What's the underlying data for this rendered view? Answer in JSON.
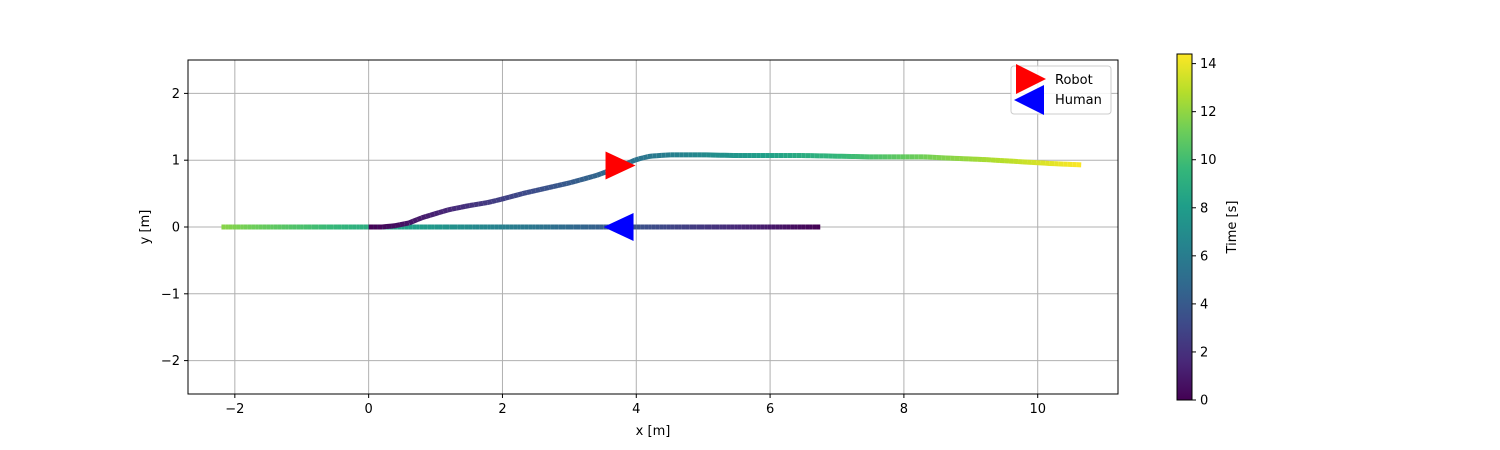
{
  "chart_data": {
    "type": "line",
    "xlabel": "x [m]",
    "ylabel": "y [m]",
    "xlim": [
      -2.7,
      11.2
    ],
    "ylim": [
      -2.5,
      2.5
    ],
    "xticks": [
      -2,
      0,
      2,
      4,
      6,
      8,
      10
    ],
    "yticks": [
      -2,
      -1,
      0,
      1,
      2
    ],
    "grid": true,
    "legend_position": "top-right",
    "colormap": "viridis",
    "colorbar": {
      "label": "Time [s]",
      "range": [
        0,
        14.4
      ],
      "ticks": [
        0,
        2,
        4,
        6,
        8,
        10,
        12,
        14
      ]
    },
    "series": [
      {
        "name": "Robot",
        "marker": "right-triangle",
        "marker_color": "#ff0000",
        "marker_position": {
          "x": 3.75,
          "y": 0.92
        },
        "t_range": [
          0,
          14.4
        ],
        "points": [
          {
            "x": 0.0,
            "y": 0.0
          },
          {
            "x": 0.2,
            "y": 0.0
          },
          {
            "x": 0.4,
            "y": 0.02
          },
          {
            "x": 0.6,
            "y": 0.06
          },
          {
            "x": 0.8,
            "y": 0.14
          },
          {
            "x": 1.0,
            "y": 0.2
          },
          {
            "x": 1.2,
            "y": 0.26
          },
          {
            "x": 1.5,
            "y": 0.32
          },
          {
            "x": 1.8,
            "y": 0.37
          },
          {
            "x": 2.0,
            "y": 0.42
          },
          {
            "x": 2.3,
            "y": 0.5
          },
          {
            "x": 2.6,
            "y": 0.57
          },
          {
            "x": 3.0,
            "y": 0.66
          },
          {
            "x": 3.4,
            "y": 0.77
          },
          {
            "x": 3.75,
            "y": 0.9
          },
          {
            "x": 4.0,
            "y": 1.01
          },
          {
            "x": 4.2,
            "y": 1.06
          },
          {
            "x": 4.5,
            "y": 1.08
          },
          {
            "x": 5.0,
            "y": 1.08
          },
          {
            "x": 5.5,
            "y": 1.07
          },
          {
            "x": 6.0,
            "y": 1.07
          },
          {
            "x": 6.5,
            "y": 1.07
          },
          {
            "x": 7.0,
            "y": 1.06
          },
          {
            "x": 7.5,
            "y": 1.05
          },
          {
            "x": 8.0,
            "y": 1.05
          },
          {
            "x": 8.3,
            "y": 1.05
          },
          {
            "x": 8.7,
            "y": 1.03
          },
          {
            "x": 9.2,
            "y": 1.01
          },
          {
            "x": 9.7,
            "y": 0.98
          },
          {
            "x": 10.2,
            "y": 0.95
          },
          {
            "x": 10.65,
            "y": 0.93
          }
        ]
      },
      {
        "name": "Human",
        "marker": "left-triangle",
        "marker_color": "#0000ff",
        "marker_position": {
          "x": 3.75,
          "y": 0.0
        },
        "t_range": [
          0,
          11.8
        ],
        "points": [
          {
            "x": 6.75,
            "y": 0.0
          },
          {
            "x": 5.0,
            "y": 0.0
          },
          {
            "x": 3.0,
            "y": 0.0
          },
          {
            "x": 1.0,
            "y": 0.0
          },
          {
            "x": -1.0,
            "y": 0.0
          },
          {
            "x": -2.2,
            "y": 0.0
          }
        ]
      }
    ]
  }
}
